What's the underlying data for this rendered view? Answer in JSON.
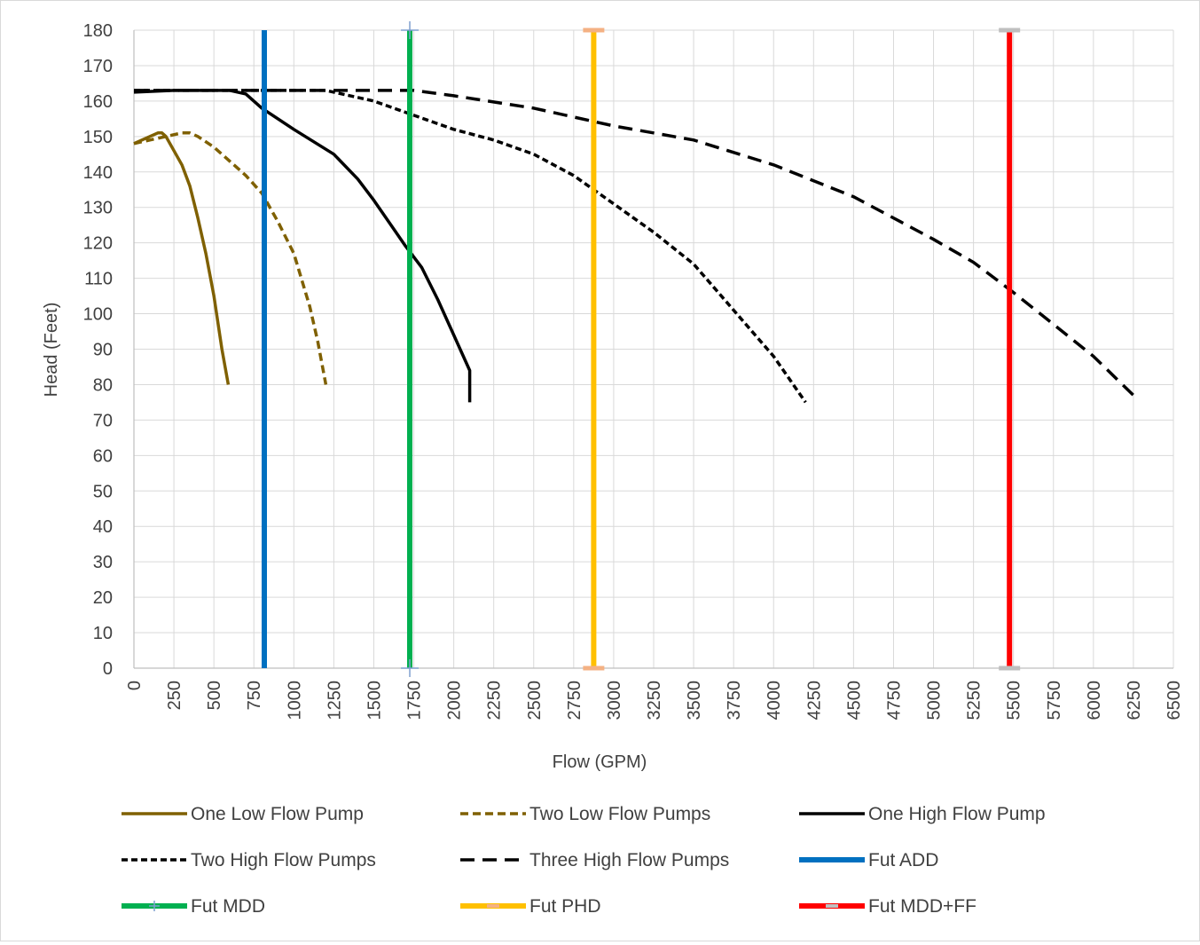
{
  "chart_data": {
    "type": "line",
    "title": "",
    "xlabel": "Flow (GPM)",
    "ylabel": "Head (Feet)",
    "xlim": [
      0,
      6500
    ],
    "ylim": [
      0,
      180
    ],
    "x_ticks": [
      0,
      250,
      500,
      750,
      1000,
      1250,
      1500,
      1750,
      2000,
      2250,
      2500,
      2750,
      3000,
      3250,
      3500,
      3750,
      4000,
      4250,
      4500,
      4750,
      5000,
      5250,
      5500,
      5750,
      6000,
      6250,
      6500
    ],
    "y_ticks": [
      0,
      10,
      20,
      30,
      40,
      50,
      60,
      70,
      80,
      90,
      100,
      110,
      120,
      130,
      140,
      150,
      160,
      170,
      180
    ],
    "grid": "both",
    "legend_position": "bottom",
    "series": [
      {
        "name": "One Low Flow Pump",
        "color": "#7f6000",
        "dash": "solid",
        "points": [
          [
            0,
            148
          ],
          [
            50,
            149
          ],
          [
            100,
            150
          ],
          [
            150,
            151
          ],
          [
            175,
            151
          ],
          [
            200,
            150
          ],
          [
            250,
            146
          ],
          [
            300,
            142
          ],
          [
            350,
            136
          ],
          [
            400,
            127
          ],
          [
            450,
            117
          ],
          [
            500,
            105
          ],
          [
            550,
            90
          ],
          [
            590,
            80
          ]
        ]
      },
      {
        "name": "Two Low Flow Pumps",
        "color": "#7f6000",
        "dash": "dash",
        "points": [
          [
            0,
            148
          ],
          [
            100,
            149
          ],
          [
            200,
            150
          ],
          [
            300,
            151
          ],
          [
            350,
            151
          ],
          [
            400,
            150
          ],
          [
            500,
            147
          ],
          [
            600,
            143
          ],
          [
            700,
            139
          ],
          [
            800,
            134
          ],
          [
            900,
            126
          ],
          [
            1000,
            117
          ],
          [
            1100,
            102
          ],
          [
            1150,
            92
          ],
          [
            1200,
            80
          ]
        ]
      },
      {
        "name": "One High Flow Pump",
        "color": "#000000",
        "dash": "solid",
        "points": [
          [
            0,
            162.5
          ],
          [
            250,
            163
          ],
          [
            500,
            163
          ],
          [
            600,
            163
          ],
          [
            700,
            162
          ],
          [
            800,
            158
          ],
          [
            1000,
            152
          ],
          [
            1250,
            145
          ],
          [
            1400,
            138
          ],
          [
            1500,
            132
          ],
          [
            1700,
            119
          ],
          [
            1800,
            113
          ],
          [
            1900,
            104
          ],
          [
            2000,
            94
          ],
          [
            2100,
            84
          ],
          [
            2100,
            75
          ]
        ]
      },
      {
        "name": "Two High Flow Pumps",
        "color": "#000000",
        "dash": "dot",
        "points": [
          [
            0,
            163
          ],
          [
            500,
            163
          ],
          [
            1000,
            163
          ],
          [
            1200,
            163
          ],
          [
            1500,
            160
          ],
          [
            1750,
            156
          ],
          [
            2000,
            152
          ],
          [
            2250,
            149
          ],
          [
            2500,
            145
          ],
          [
            2750,
            139
          ],
          [
            3000,
            131
          ],
          [
            3250,
            123
          ],
          [
            3500,
            114
          ],
          [
            3750,
            101
          ],
          [
            4000,
            88
          ],
          [
            4200,
            75
          ]
        ]
      },
      {
        "name": "Three High Flow Pumps",
        "color": "#000000",
        "dash": "longdash",
        "points": [
          [
            0,
            163
          ],
          [
            500,
            163
          ],
          [
            1000,
            163
          ],
          [
            1500,
            163
          ],
          [
            1750,
            163
          ],
          [
            2000,
            161.5
          ],
          [
            2500,
            158
          ],
          [
            3000,
            153
          ],
          [
            3500,
            149
          ],
          [
            4000,
            142
          ],
          [
            4500,
            133
          ],
          [
            5000,
            121
          ],
          [
            5250,
            114.5
          ],
          [
            5500,
            106
          ],
          [
            5750,
            97
          ],
          [
            6000,
            88
          ],
          [
            6250,
            77
          ]
        ]
      },
      {
        "name": "Fut ADD",
        "color": "#0070c0",
        "dash": "solid",
        "points": [
          [
            815,
            0
          ],
          [
            815,
            180
          ]
        ]
      },
      {
        "name": "Fut MDD",
        "color": "#00b050",
        "dash": "solid",
        "marker": "plus",
        "marker_color": "#7f9fcf",
        "points": [
          [
            1725,
            0
          ],
          [
            1725,
            180
          ]
        ]
      },
      {
        "name": "Fut PHD",
        "color": "#ffc000",
        "dash": "solid",
        "marker": "dash",
        "marker_color": "#f4b183",
        "points": [
          [
            2875,
            0
          ],
          [
            2875,
            180
          ]
        ]
      },
      {
        "name": "Fut MDD+FF",
        "color": "#ff0000",
        "dash": "solid",
        "marker": "dash",
        "marker_color": "#bfbfbf",
        "points": [
          [
            5475,
            0
          ],
          [
            5475,
            180
          ]
        ]
      }
    ]
  }
}
